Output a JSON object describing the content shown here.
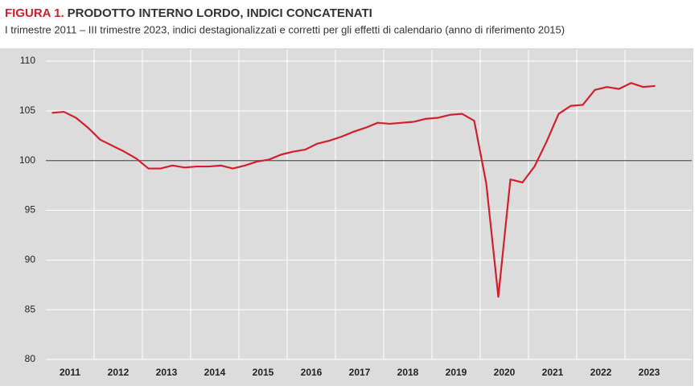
{
  "chart_data": {
    "type": "line",
    "figure_label": "FIGURA 1.",
    "title": "PRODOTTO INTERNO LORDO, INDICI CONCATENATI",
    "subtitle": "I trimestre 2011 – III trimestre 2023, indici destagionalizzati e corretti per gli effetti di calendario (anno di riferimento 2015)",
    "categories": [
      "2011",
      null,
      null,
      null,
      "2012",
      null,
      null,
      null,
      "2013",
      null,
      null,
      null,
      "2014",
      null,
      null,
      null,
      "2015",
      null,
      null,
      null,
      "2016",
      null,
      null,
      null,
      "2017",
      null,
      null,
      null,
      "2018",
      null,
      null,
      null,
      "2019",
      null,
      null,
      null,
      "2020",
      null,
      null,
      null,
      "2021",
      null,
      null,
      null,
      "2022",
      null,
      null,
      null,
      "2023",
      null,
      null
    ],
    "series": [
      {
        "color": "#d0202e",
        "values": [
          104.8,
          104.9,
          104.3,
          103.3,
          102.1,
          101.5,
          100.9,
          100.2,
          99.2,
          99.2,
          99.5,
          99.3,
          99.4,
          99.4,
          99.5,
          99.2,
          99.5,
          99.9,
          100.1,
          100.6,
          100.9,
          101.1,
          101.7,
          102.0,
          102.4,
          102.9,
          103.3,
          103.8,
          103.7,
          103.8,
          103.9,
          104.2,
          104.3,
          104.6,
          104.7,
          104.0,
          97.7,
          86.3,
          98.1,
          97.8,
          99.4,
          101.9,
          104.7,
          105.5,
          105.6,
          107.1,
          107.4,
          107.2,
          107.8,
          107.4,
          107.5
        ]
      }
    ],
    "ylim": [
      80,
      110
    ],
    "yticks": [
      80,
      85,
      90,
      95,
      100,
      105,
      110
    ],
    "grid": true,
    "reference_line": 100
  }
}
